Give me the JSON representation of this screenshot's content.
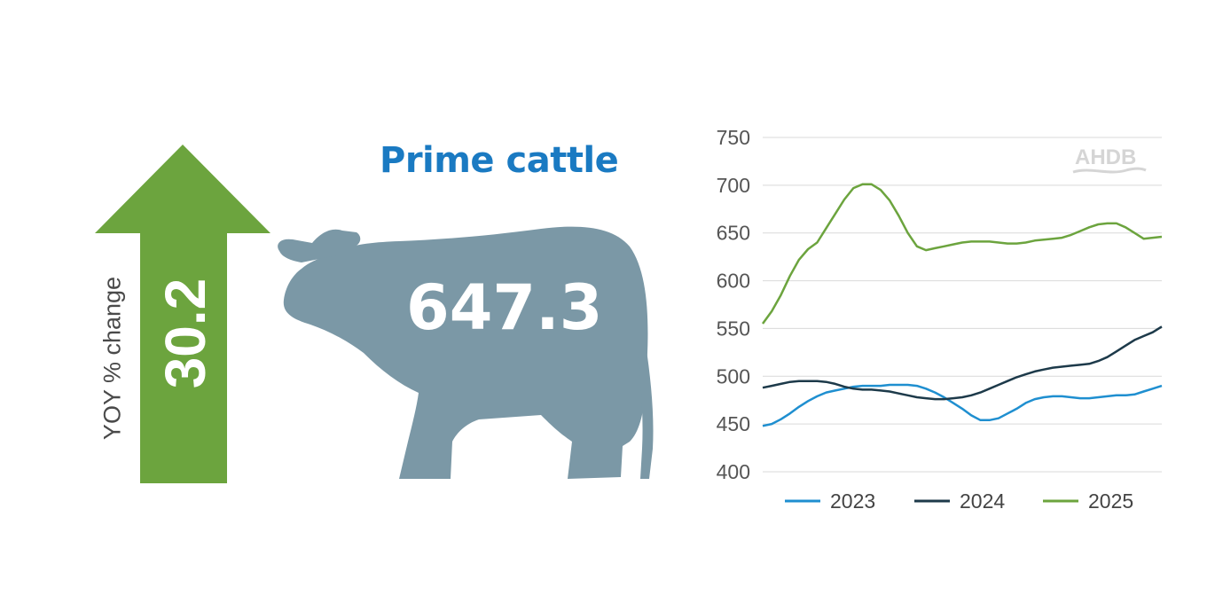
{
  "title": "Prime cattle",
  "price_value": "647.3",
  "yoy": {
    "label": "YOY % change",
    "value": "30.2"
  },
  "logo": {
    "text": "AHDB"
  },
  "colors": {
    "arrow": "#6ca43e",
    "cow": "#7b98a6",
    "title": "#1a7ac2",
    "series_2023": "#1f8fd0",
    "series_2024": "#1d3a4a",
    "series_2025": "#6ca43e"
  },
  "chart_data": {
    "type": "line",
    "title": "",
    "xlabel": "",
    "ylabel": "",
    "ylim": [
      400,
      750
    ],
    "yticks": [
      400,
      450,
      500,
      550,
      600,
      650,
      700,
      750
    ],
    "grid": true,
    "legend_position": "bottom",
    "series": [
      {
        "name": "2023",
        "color": "#1f8fd0",
        "values": [
          448,
          450,
          455,
          461,
          468,
          474,
          479,
          483,
          485,
          487,
          489,
          490,
          490,
          490,
          491,
          491,
          491,
          490,
          487,
          483,
          478,
          472,
          466,
          459,
          454,
          454,
          456,
          461,
          466,
          472,
          476,
          478,
          479,
          479,
          478,
          477,
          477,
          478,
          479,
          480,
          480,
          481,
          484,
          487,
          490
        ]
      },
      {
        "name": "2024",
        "color": "#1d3a4a",
        "values": [
          488,
          490,
          492,
          494,
          495,
          495,
          495,
          494,
          492,
          489,
          487,
          486,
          486,
          485,
          484,
          482,
          480,
          478,
          477,
          476,
          476,
          477,
          478,
          480,
          483,
          487,
          491,
          495,
          499,
          502,
          505,
          507,
          509,
          510,
          511,
          512,
          513,
          516,
          520,
          526,
          532,
          538,
          542,
          546,
          552
        ]
      },
      {
        "name": "2025",
        "color": "#6ca43e",
        "values": [
          555,
          568,
          585,
          605,
          622,
          633,
          640,
          655,
          670,
          685,
          697,
          701,
          701,
          695,
          684,
          668,
          650,
          636,
          632,
          634,
          636,
          638,
          640,
          641,
          641,
          641,
          640,
          639,
          639,
          640,
          642,
          643,
          644,
          645,
          648,
          652,
          656,
          659,
          660,
          660,
          656,
          650,
          644,
          645,
          646
        ]
      }
    ]
  }
}
